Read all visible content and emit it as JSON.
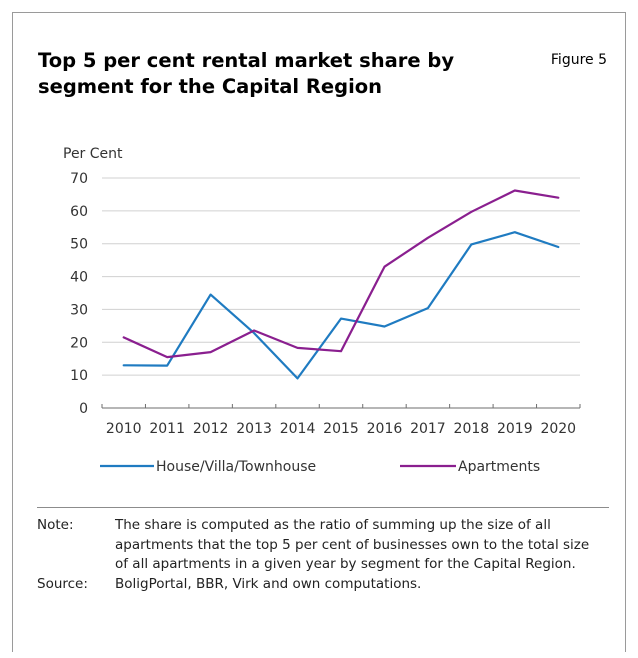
{
  "title": "Top 5 per cent rental market share by segment for the Capital Region",
  "figure_label": "Figure 5",
  "note_key": "Note:",
  "note_text": "The share is computed as the ratio of summing up the size of all apartments that the top 5 per cent of businesses own to the total size of all apartments in a given year by segment for the Capital Region.",
  "source_key": "Source:",
  "source_text": "BoligPortal, BBR, Virk and own computations.",
  "chart_data": {
    "type": "line",
    "ylabel": "Per Cent",
    "xlabel": "",
    "ylim": [
      0,
      70
    ],
    "yticks": [
      0,
      10,
      20,
      30,
      40,
      50,
      60,
      70
    ],
    "categories": [
      "2010",
      "2011",
      "2012",
      "2013",
      "2014",
      "2015",
      "2016",
      "2017",
      "2018",
      "2019",
      "2020"
    ],
    "grid": "horizontal",
    "legend_position": "bottom",
    "series": [
      {
        "name": "House/Villa/Townhouse",
        "color": "#1f7bc1",
        "values": [
          13.0,
          12.9,
          34.5,
          22.8,
          9.0,
          27.2,
          24.8,
          30.4,
          49.8,
          53.5,
          49.0
        ]
      },
      {
        "name": "Apartments",
        "color": "#8a1f8f",
        "values": [
          21.5,
          15.5,
          17.0,
          23.6,
          18.3,
          17.3,
          43.0,
          51.8,
          59.7,
          66.2,
          64.0
        ]
      }
    ]
  }
}
